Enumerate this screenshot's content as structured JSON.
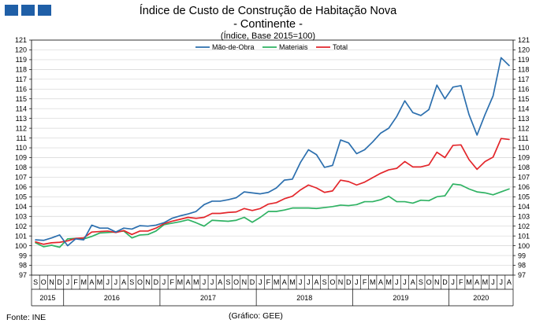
{
  "header": {
    "title_line1": "Índice de Custo de Construção de Habitação Nova",
    "title_line2": "- Continente -",
    "subtitle": "(Índice, Base 2015=100)"
  },
  "footer": {
    "source": "Fonte: INE",
    "credit": "(Gráfico: GEE)"
  },
  "colors": {
    "mao_de_obra": "#2c6fae",
    "materiais": "#2fb263",
    "total": "#e3262b",
    "grid": "#d4d4d4",
    "logo": "#1f5fa7"
  },
  "chart_data": {
    "type": "line",
    "title": "Índice de Custo de Construção de Habitação Nova",
    "subtitle": "(Índice, Base 2015=100)",
    "xlabel": "",
    "ylabel": "",
    "ylim": [
      97,
      121
    ],
    "yticks": [
      97,
      98,
      99,
      100,
      101,
      102,
      103,
      104,
      105,
      106,
      107,
      108,
      109,
      110,
      111,
      112,
      113,
      114,
      115,
      116,
      117,
      118,
      119,
      120,
      121
    ],
    "grid": true,
    "legend_position": "top-center",
    "month_labels": [
      "S",
      "O",
      "N",
      "D",
      "J",
      "F",
      "M",
      "A",
      "M",
      "J",
      "J",
      "A",
      "S",
      "O",
      "N",
      "D",
      "J",
      "F",
      "M",
      "A",
      "M",
      "J",
      "J",
      "A",
      "S",
      "O",
      "N",
      "D",
      "J",
      "F",
      "M",
      "A",
      "M",
      "J",
      "J",
      "A",
      "S",
      "O",
      "N",
      "D",
      "J",
      "F",
      "M",
      "A",
      "M",
      "J",
      "J",
      "A",
      "S",
      "O",
      "N",
      "D",
      "J",
      "F",
      "M",
      "A",
      "M",
      "J",
      "J",
      "A"
    ],
    "years": [
      {
        "label": "2015",
        "start": 0,
        "count": 4
      },
      {
        "label": "2016",
        "start": 4,
        "count": 12
      },
      {
        "label": "2017",
        "start": 16,
        "count": 12
      },
      {
        "label": "2018",
        "start": 28,
        "count": 12
      },
      {
        "label": "2019",
        "start": 40,
        "count": 12
      },
      {
        "label": "2020",
        "start": 52,
        "count": 8
      }
    ],
    "series": [
      {
        "name": "Mão-de-Obra",
        "color_key": "mao_de_obra",
        "values": [
          100.6,
          100.55,
          100.8,
          101.1,
          100.0,
          100.7,
          100.6,
          102.1,
          101.8,
          101.8,
          101.4,
          101.8,
          101.7,
          102.05,
          102.0,
          102.1,
          102.35,
          102.8,
          103.05,
          103.25,
          103.5,
          104.2,
          104.55,
          104.55,
          104.7,
          104.9,
          105.5,
          105.4,
          105.3,
          105.45,
          105.9,
          106.7,
          106.8,
          108.5,
          109.8,
          109.3,
          108.0,
          108.2,
          110.8,
          110.5,
          109.4,
          109.8,
          110.6,
          111.5,
          112.0,
          113.2,
          114.8,
          113.6,
          113.3,
          113.9,
          116.4,
          115.0,
          116.2,
          116.35,
          113.4,
          111.3,
          113.4,
          115.3,
          119.2,
          118.4
        ]
      },
      {
        "name": "Materiais",
        "color_key": "materiais",
        "values": [
          100.3,
          99.9,
          100.05,
          99.85,
          100.7,
          100.75,
          100.7,
          100.95,
          101.3,
          101.35,
          101.4,
          101.5,
          100.8,
          101.1,
          101.15,
          101.5,
          102.15,
          102.3,
          102.45,
          102.65,
          102.35,
          102.0,
          102.6,
          102.55,
          102.5,
          102.6,
          102.9,
          102.4,
          102.9,
          103.5,
          103.5,
          103.65,
          103.85,
          103.85,
          103.85,
          103.8,
          103.9,
          104.0,
          104.15,
          104.1,
          104.2,
          104.5,
          104.5,
          104.7,
          105.05,
          104.5,
          104.5,
          104.35,
          104.65,
          104.6,
          105.0,
          105.1,
          106.3,
          106.2,
          105.8,
          105.5,
          105.4,
          105.2,
          105.5,
          105.8
        ]
      },
      {
        "name": "Total",
        "color_key": "total",
        "values": [
          100.4,
          100.15,
          100.3,
          100.35,
          100.5,
          100.75,
          100.8,
          101.4,
          101.45,
          101.5,
          101.35,
          101.55,
          101.15,
          101.5,
          101.5,
          101.8,
          102.25,
          102.5,
          102.7,
          102.9,
          102.8,
          102.9,
          103.3,
          103.3,
          103.4,
          103.45,
          103.8,
          103.6,
          103.8,
          104.25,
          104.4,
          104.8,
          105.05,
          105.7,
          106.2,
          105.9,
          105.45,
          105.6,
          106.7,
          106.55,
          106.2,
          106.5,
          106.95,
          107.4,
          107.75,
          107.9,
          108.6,
          108.05,
          108.05,
          108.25,
          109.55,
          109.0,
          110.25,
          110.3,
          108.8,
          107.8,
          108.6,
          109.05,
          110.95,
          110.85
        ]
      }
    ]
  }
}
